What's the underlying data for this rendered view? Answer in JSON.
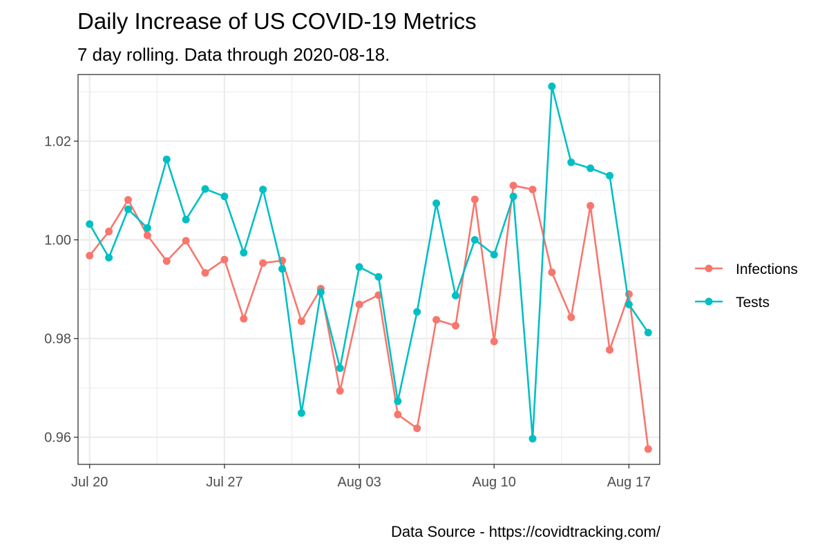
{
  "title": "Daily Increase of US COVID-19 Metrics",
  "subtitle": "7 day rolling. Data through 2020-08-18.",
  "caption": "Data Source - https://covidtracking.com/",
  "colors": {
    "Infections": "#F8766D",
    "Tests": "#00BFC4",
    "grid": "#EBEBEB",
    "panel_border": "#333333"
  },
  "chart_data": {
    "type": "line",
    "title": "Daily Increase of US COVID-19 Metrics",
    "subtitle": "7 day rolling. Data through 2020-08-18.",
    "xlabel": "",
    "ylabel": "",
    "x": [
      "2020-07-20",
      "2020-07-21",
      "2020-07-22",
      "2020-07-23",
      "2020-07-24",
      "2020-07-25",
      "2020-07-26",
      "2020-07-27",
      "2020-07-28",
      "2020-07-29",
      "2020-07-30",
      "2020-07-31",
      "2020-08-01",
      "2020-08-02",
      "2020-08-03",
      "2020-08-04",
      "2020-08-05",
      "2020-08-06",
      "2020-08-07",
      "2020-08-08",
      "2020-08-09",
      "2020-08-10",
      "2020-08-11",
      "2020-08-12",
      "2020-08-13",
      "2020-08-14",
      "2020-08-15",
      "2020-08-16",
      "2020-08-17",
      "2020-08-18"
    ],
    "x_ticks": [
      {
        "date": "2020-07-20",
        "label": "Jul 20"
      },
      {
        "date": "2020-07-27",
        "label": "Jul 27"
      },
      {
        "date": "2020-08-03",
        "label": "Aug 03"
      },
      {
        "date": "2020-08-10",
        "label": "Aug 10"
      },
      {
        "date": "2020-08-17",
        "label": "Aug 17"
      }
    ],
    "y_ticks": [
      "0.96",
      "0.98",
      "1.00",
      "1.02"
    ],
    "xlim": [
      "2020-07-19.4",
      "2020-08-18.6"
    ],
    "ylim": [
      0.9545,
      1.0335
    ],
    "legend_position": "right",
    "grid": true,
    "series": [
      {
        "name": "Infections",
        "values": [
          0.9968,
          1.0017,
          1.0081,
          1.0009,
          0.9957,
          0.9998,
          0.9933,
          0.996,
          0.984,
          0.9953,
          0.9958,
          0.9835,
          0.9901,
          0.9694,
          0.9869,
          0.9888,
          0.9646,
          0.9618,
          0.9838,
          0.9826,
          1.0082,
          0.9794,
          1.011,
          1.0102,
          0.9934,
          0.9843,
          1.0069,
          0.9777,
          0.989,
          0.9576
        ]
      },
      {
        "name": "Tests",
        "values": [
          1.0032,
          0.9964,
          1.0062,
          1.0024,
          1.0163,
          1.0041,
          1.0103,
          1.0088,
          0.9974,
          1.0102,
          0.9941,
          0.9649,
          0.9894,
          0.974,
          0.9945,
          0.9925,
          0.9673,
          0.9854,
          1.0074,
          0.9887,
          1.0,
          0.997,
          1.0088,
          0.9597,
          1.0311,
          1.0157,
          1.0145,
          1.013,
          0.9869,
          0.9812
        ]
      }
    ]
  }
}
